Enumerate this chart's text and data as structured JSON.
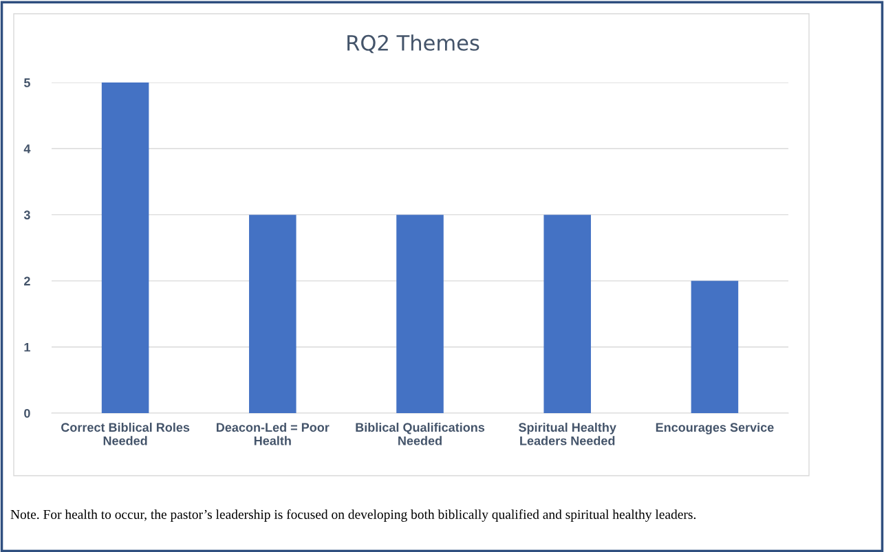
{
  "chart_data": {
    "type": "bar",
    "title": "RQ2 Themes",
    "categories": [
      "Correct Biblical Roles\nNeeded",
      "Deacon-Led = Poor\nHealth",
      "Biblical Qualifications\nNeeded",
      "Spiritual Healthy\nLeaders Needed",
      "Encourages Service"
    ],
    "values": [
      5,
      3,
      3,
      3,
      2
    ],
    "color": "#4472c4",
    "ylim": [
      0,
      5
    ],
    "yticks": [
      0,
      1,
      2,
      3,
      4,
      5
    ],
    "grid": "y",
    "annotations": [
      "Note. For health to occur, the pastor’s leadership is focused on developing both biblically qualified and spiritual healthy leaders."
    ]
  }
}
